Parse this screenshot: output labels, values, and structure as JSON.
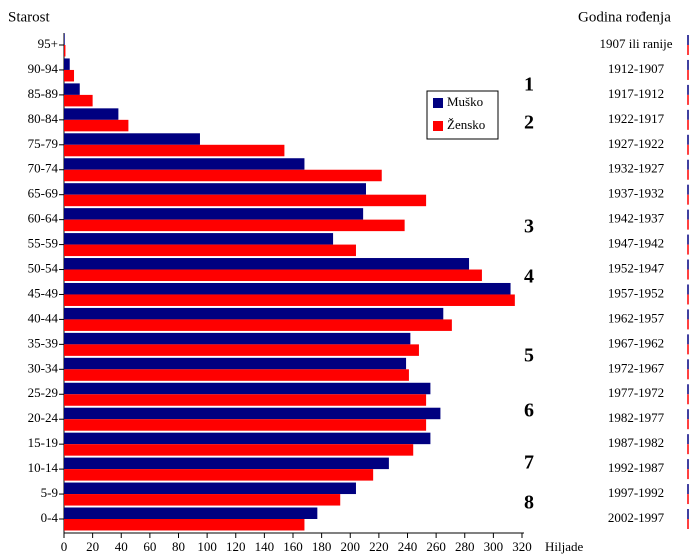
{
  "chart_data": {
    "type": "barh",
    "y_axis_title": "Starost",
    "right_axis_title": "Godina rođenja",
    "x_axis_title": "Hiljade",
    "categories": [
      "95+",
      "90-94",
      "85-89",
      "80-84",
      "75-79",
      "70-74",
      "65-69",
      "60-64",
      "55-59",
      "50-54",
      "45-49",
      "40-44",
      "35-39",
      "30-34",
      "25-29",
      "20-24",
      "15-19",
      "10-14",
      "5-9",
      "0-4"
    ],
    "birth_years": [
      "1907 ili ranije",
      "1912-1907",
      "1917-1912",
      "1922-1917",
      "1927-1922",
      "1932-1927",
      "1937-1932",
      "1942-1937",
      "1947-1942",
      "1952-1947",
      "1957-1952",
      "1962-1957",
      "1967-1962",
      "1972-1967",
      "1977-1972",
      "1982-1977",
      "1987-1982",
      "1992-1987",
      "1997-1992",
      "2002-1997"
    ],
    "series": [
      {
        "name": "Muško",
        "color": "#000080",
        "values": [
          0.5,
          4,
          11,
          38,
          95,
          168,
          211,
          209,
          188,
          283,
          312,
          265,
          242,
          239,
          256,
          263,
          256,
          227,
          204,
          177
        ]
      },
      {
        "name": "Žensko",
        "color": "#ff0000",
        "values": [
          1,
          7,
          20,
          45,
          154,
          222,
          253,
          238,
          204,
          292,
          315,
          271,
          248,
          241,
          253,
          253,
          244,
          216,
          193,
          168
        ]
      }
    ],
    "xlim": [
      0,
      320
    ],
    "xticks": [
      0,
      20,
      40,
      60,
      80,
      100,
      120,
      140,
      160,
      180,
      200,
      220,
      240,
      260,
      280,
      300,
      320
    ],
    "annotations": [
      "1",
      "2",
      "3",
      "4",
      "5",
      "6",
      "7",
      "8"
    ]
  }
}
